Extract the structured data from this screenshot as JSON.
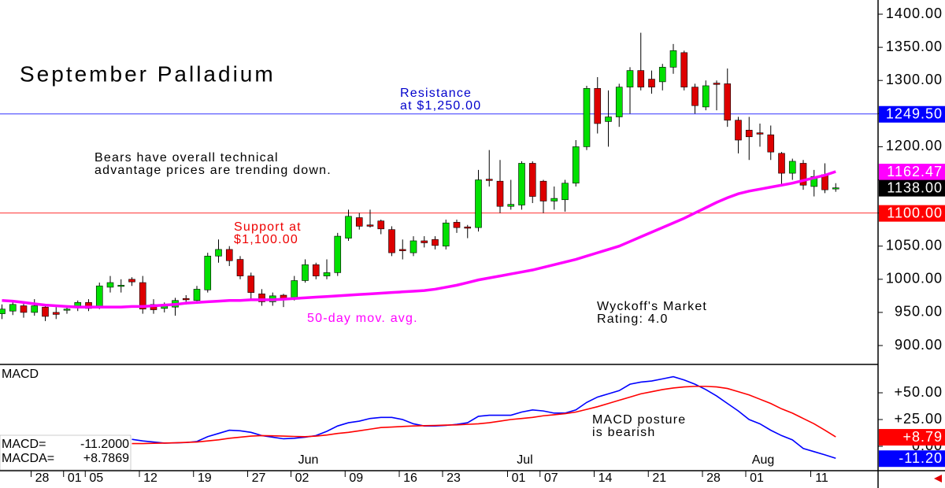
{
  "chart_data": [
    {
      "type": "candlestick",
      "title": "September Palladium",
      "categories": [
        null,
        null,
        null,
        null,
        "28",
        null,
        null,
        "01",
        null,
        "05",
        null,
        null,
        null,
        null,
        "12",
        null,
        null,
        null,
        null,
        "19",
        null,
        null,
        null,
        null,
        "27",
        null,
        null,
        null,
        "02",
        null,
        null,
        null,
        null,
        "09",
        null,
        null,
        null,
        null,
        "16",
        null,
        null,
        null,
        "23",
        null,
        null,
        null,
        null,
        null,
        "01",
        null,
        null,
        "07",
        null,
        null,
        null,
        null,
        "14",
        null,
        null,
        null,
        null,
        "21",
        null,
        null,
        null,
        null,
        "28",
        null,
        null,
        null,
        "01",
        null,
        null,
        null,
        null,
        null,
        "11",
        null
      ],
      "month_labels": [
        null,
        null,
        null,
        null,
        null,
        null,
        null,
        null,
        null,
        null,
        null,
        null,
        null,
        null,
        null,
        null,
        null,
        null,
        null,
        null,
        null,
        null,
        null,
        null,
        null,
        null,
        null,
        null,
        "Jun",
        null,
        null,
        null,
        null,
        null,
        null,
        null,
        null,
        null,
        null,
        null,
        null,
        null,
        null,
        null,
        null,
        null,
        null,
        null,
        "Jul",
        null,
        null,
        null,
        null,
        null,
        null,
        null,
        null,
        null,
        null,
        null,
        null,
        null,
        null,
        null,
        null,
        null,
        null,
        null,
        null,
        null,
        "Aug",
        null,
        null,
        null,
        null,
        null,
        null,
        null
      ],
      "open": [
        948,
        952,
        960,
        950,
        958,
        950,
        954,
        958,
        965,
        958,
        988,
        990,
        1000,
        995,
        962,
        956,
        958,
        971,
        968,
        984,
        1035,
        1045,
        1030,
        1005,
        978,
        966,
        976,
        972,
        998,
        1022,
        1005,
        1010,
        1062,
        1093,
        1082,
        1088,
        1075,
        1045,
        1040,
        1058,
        1060,
        1050,
        1086,
        1079,
        1078,
        1151,
        1148,
        1110,
        1112,
        1175,
        1148,
        1118,
        1120,
        1145,
        1200,
        1288,
        1238,
        1245,
        1290,
        1315,
        1302,
        1298,
        1320,
        1342,
        1290,
        1260,
        1296,
        1295,
        1240,
        1225,
        1221,
        1218,
        1190,
        1160,
        1175,
        1140,
        1158,
        1137
      ],
      "high": [
        962,
        968,
        965,
        970,
        963,
        958,
        960,
        968,
        970,
        995,
        1005,
        1000,
        1003,
        1005,
        970,
        965,
        972,
        976,
        990,
        1040,
        1060,
        1050,
        1035,
        1010,
        985,
        980,
        978,
        1005,
        1030,
        1025,
        1030,
        1070,
        1105,
        1100,
        1105,
        1090,
        1080,
        1060,
        1065,
        1065,
        1065,
        1090,
        1090,
        1082,
        1165,
        1195,
        1180,
        1150,
        1178,
        1178,
        1150,
        1140,
        1150,
        1210,
        1292,
        1305,
        1285,
        1295,
        1320,
        1372,
        1315,
        1325,
        1355,
        1345,
        1295,
        1300,
        1300,
        1318,
        1245,
        1245,
        1235,
        1232,
        1192,
        1182,
        1180,
        1165,
        1175,
        1145
      ],
      "low": [
        940,
        946,
        942,
        945,
        937,
        940,
        948,
        952,
        952,
        955,
        980,
        980,
        990,
        948,
        948,
        950,
        945,
        962,
        965,
        980,
        1025,
        1020,
        1000,
        970,
        960,
        960,
        958,
        968,
        995,
        1000,
        1000,
        1005,
        1058,
        1075,
        1078,
        1068,
        1035,
        1030,
        1035,
        1048,
        1045,
        1045,
        1070,
        1062,
        1072,
        1140,
        1100,
        1105,
        1105,
        1115,
        1100,
        1105,
        1102,
        1140,
        1195,
        1220,
        1200,
        1230,
        1250,
        1285,
        1280,
        1285,
        1310,
        1285,
        1250,
        1255,
        1255,
        1230,
        1190,
        1180,
        1200,
        1180,
        1140,
        1150,
        1135,
        1125,
        1130,
        1132
      ],
      "close": [
        955,
        962,
        950,
        960,
        944,
        947,
        955,
        965,
        956,
        990,
        995,
        991,
        996,
        955,
        954,
        960,
        968,
        969,
        985,
        1035,
        1045,
        1028,
        1005,
        980,
        966,
        975,
        970,
        998,
        1022,
        1005,
        1010,
        1065,
        1095,
        1080,
        1080,
        1076,
        1040,
        1043,
        1058,
        1055,
        1051,
        1085,
        1078,
        1077,
        1150,
        1149,
        1110,
        1113,
        1175,
        1125,
        1118,
        1122,
        1145,
        1200,
        1288,
        1235,
        1245,
        1290,
        1315,
        1290,
        1290,
        1320,
        1345,
        1290,
        1262,
        1292,
        1294,
        1240,
        1210,
        1215,
        1219,
        1192,
        1160,
        1178,
        1142,
        1155,
        1135,
        1138
      ],
      "up_color": "#00e000",
      "down_color": "#dd0000",
      "moving_average": {
        "name": "50-day mov. avg.",
        "color": "#ff00ff",
        "values": [
          968,
          967,
          965,
          963,
          961,
          960,
          959,
          958,
          958,
          958,
          958,
          958,
          959,
          959,
          960,
          961,
          962,
          964,
          965,
          966,
          967,
          968,
          968,
          969,
          969,
          969,
          970,
          971,
          972,
          973,
          974,
          975,
          976,
          977,
          978,
          979,
          980,
          981,
          982,
          983,
          985,
          988,
          991,
          995,
          999,
          1002,
          1005,
          1008,
          1011,
          1014,
          1018,
          1022,
          1026,
          1030,
          1035,
          1040,
          1045,
          1050,
          1057,
          1064,
          1071,
          1078,
          1085,
          1092,
          1100,
          1108,
          1116,
          1123,
          1129,
          1133,
          1136,
          1139,
          1142,
          1145,
          1149,
          1153,
          1157,
          1162.47
        ]
      },
      "ylim": [
        871.5,
        1421.4
      ],
      "yticks": [
        {
          "value": 900,
          "label": "900.00"
        },
        {
          "value": 950,
          "label": "950.00"
        },
        {
          "value": 1000,
          "label": "1000.00"
        },
        {
          "value": 1050,
          "label": "1050.00"
        },
        {
          "value": 1100,
          "label": "1100.00"
        },
        {
          "value": 1150,
          "label": "1150.00"
        },
        {
          "value": 1200,
          "label": "1200.00"
        },
        {
          "value": 1250,
          "label": "1250.00"
        },
        {
          "value": 1300,
          "label": "1300.00"
        },
        {
          "value": 1350,
          "label": "1350.00"
        },
        {
          "value": 1400,
          "label": "1400.00"
        }
      ],
      "hlines": [
        {
          "value": 1249.5,
          "color": "#3333ff"
        },
        {
          "value": 1100,
          "color": "#ff3333"
        }
      ],
      "markers": [
        {
          "value": 1249.5,
          "label": "1249.50",
          "color": "#0000ff"
        },
        {
          "value": 1162.47,
          "label": "1162.47",
          "color": "#ff00ff"
        },
        {
          "value": 1138,
          "label": "1138.00",
          "color": "#000000"
        },
        {
          "value": 1100,
          "label": "1100.00",
          "color": "#ff0000"
        }
      ],
      "annotations": [
        {
          "lines": [
            "Resistance",
            "at $1,250.00"
          ],
          "color": "#0000cc"
        },
        {
          "lines": [
            "Bears have overall technical",
            "advantage prices are trending down."
          ],
          "color": "#000000"
        },
        {
          "lines": [
            "Support at",
            "$1,100.00"
          ],
          "color": "#ee0000"
        },
        {
          "lines": [
            "Wyckoff's Market",
            "Rating: 4.0"
          ],
          "color": "#000000"
        }
      ]
    },
    {
      "type": "line",
      "title": "MACD",
      "series": [
        {
          "name": "MACD=",
          "last_label": "-11.2000",
          "color": "#0000ff",
          "values": [
            null,
            null,
            null,
            null,
            null,
            null,
            null,
            null,
            null,
            null,
            null,
            null,
            6.5,
            5,
            4,
            3,
            3.2,
            3.5,
            4.5,
            9,
            12,
            15,
            14.5,
            13,
            10,
            8.5,
            7,
            7.5,
            8.5,
            10,
            14,
            19,
            22,
            23.5,
            26,
            27,
            27,
            25,
            21,
            19,
            19,
            19.5,
            20.5,
            22,
            28,
            29,
            29,
            29,
            32,
            34,
            33,
            31,
            31,
            34,
            41,
            46,
            49,
            52,
            58,
            60,
            61,
            63,
            65,
            62,
            58,
            53,
            47,
            40,
            33,
            25,
            21,
            15,
            10,
            6,
            -2,
            -5,
            -8,
            -11.2
          ]
        },
        {
          "name": "MACDA=",
          "last_label": "+8.7869",
          "color": "#ff0000",
          "values": [
            null,
            null,
            null,
            null,
            null,
            null,
            null,
            null,
            null,
            null,
            null,
            null,
            2.5,
            2.5,
            2.8,
            3,
            3.3,
            3.6,
            4,
            5,
            6,
            7.5,
            8.5,
            9.5,
            10,
            9.8,
            9.5,
            9.2,
            9,
            9.5,
            10.5,
            12,
            13,
            14.5,
            16,
            17.5,
            18,
            18.5,
            19,
            19.3,
            19.5,
            19.8,
            20,
            20.5,
            21,
            22,
            23.5,
            25,
            26,
            27,
            28.5,
            29.5,
            30.5,
            32,
            34.5,
            37,
            40,
            43,
            46,
            49,
            51,
            53,
            54.5,
            55.5,
            56,
            56,
            55.5,
            54,
            51,
            48,
            44,
            40,
            35,
            31,
            26,
            21,
            15,
            8.7869
          ]
        }
      ],
      "ylim": [
        -22.8,
        76.5
      ],
      "yticks": [
        {
          "value": 0,
          "label": "0.00"
        },
        {
          "value": 25,
          "label": "+25.00"
        },
        {
          "value": 50,
          "label": "+50.00"
        }
      ],
      "markers": [
        {
          "value": 8.7869,
          "label": "+8.79",
          "color": "#ff0000"
        },
        {
          "value": -11.2,
          "label": "-11.20",
          "color": "#0000ff"
        }
      ],
      "annotations": [
        {
          "lines": [
            "MACD posture",
            "is bearish"
          ],
          "color": "#000000"
        }
      ]
    }
  ]
}
